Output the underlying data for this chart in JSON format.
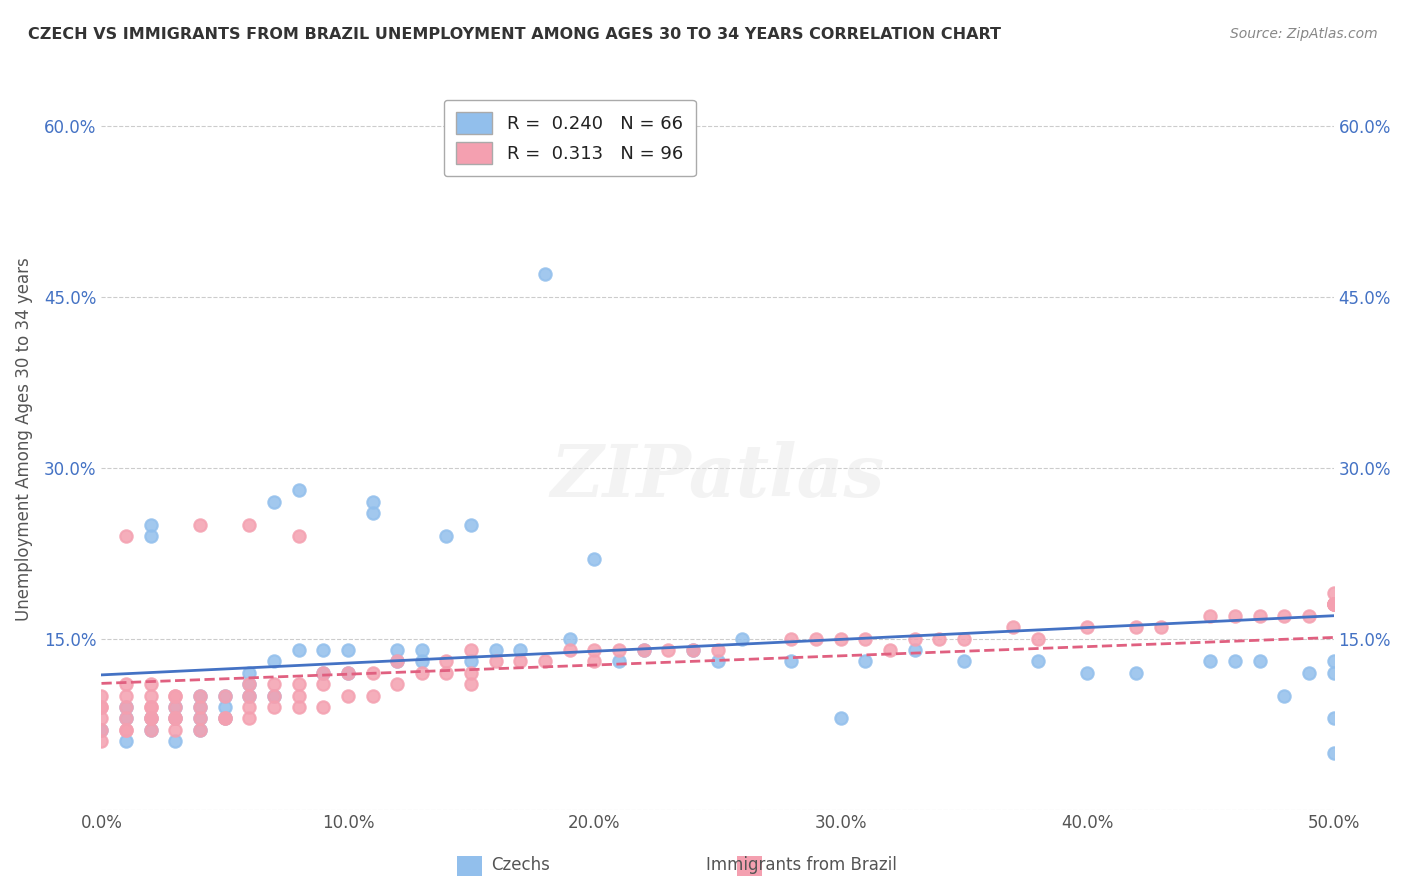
{
  "title": "CZECH VS IMMIGRANTS FROM BRAZIL UNEMPLOYMENT AMONG AGES 30 TO 34 YEARS CORRELATION CHART",
  "source": "Source: ZipAtlas.com",
  "xlabel_bottom": "",
  "ylabel": "Unemployment Among Ages 30 to 34 years",
  "xlim": [
    0.0,
    0.5
  ],
  "ylim": [
    0.0,
    0.65
  ],
  "xticks": [
    0.0,
    0.1,
    0.2,
    0.3,
    0.4,
    0.5
  ],
  "xticklabels": [
    "0.0%",
    "10.0%",
    "20.0%",
    "30.0%",
    "40.0%",
    "50.0%"
  ],
  "yticks": [
    0.0,
    0.15,
    0.3,
    0.45,
    0.6
  ],
  "yticklabels": [
    "",
    "15.0%",
    "30.0%",
    "45.0%",
    "60.0%"
  ],
  "legend_blue_r": "0.240",
  "legend_blue_n": "66",
  "legend_pink_r": "0.313",
  "legend_pink_n": "96",
  "blue_color": "#92BFEC",
  "pink_color": "#F4A0B0",
  "trend_blue": "#4472C4",
  "trend_pink": "#E06080",
  "watermark": "ZIPatlas",
  "czechs_x": [
    0.0,
    0.01,
    0.01,
    0.01,
    0.02,
    0.02,
    0.02,
    0.02,
    0.03,
    0.03,
    0.03,
    0.04,
    0.04,
    0.04,
    0.04,
    0.05,
    0.05,
    0.05,
    0.06,
    0.06,
    0.06,
    0.07,
    0.07,
    0.07,
    0.08,
    0.08,
    0.09,
    0.09,
    0.1,
    0.1,
    0.11,
    0.11,
    0.12,
    0.12,
    0.13,
    0.13,
    0.14,
    0.15,
    0.15,
    0.16,
    0.17,
    0.18,
    0.19,
    0.2,
    0.21,
    0.22,
    0.24,
    0.25,
    0.26,
    0.28,
    0.3,
    0.31,
    0.33,
    0.35,
    0.38,
    0.4,
    0.42,
    0.45,
    0.46,
    0.47,
    0.48,
    0.49,
    0.5,
    0.5,
    0.5,
    0.5
  ],
  "czechs_y": [
    0.07,
    0.08,
    0.09,
    0.06,
    0.24,
    0.25,
    0.07,
    0.08,
    0.08,
    0.09,
    0.06,
    0.1,
    0.09,
    0.08,
    0.07,
    0.1,
    0.08,
    0.09,
    0.12,
    0.11,
    0.1,
    0.13,
    0.1,
    0.27,
    0.28,
    0.14,
    0.12,
    0.14,
    0.12,
    0.14,
    0.26,
    0.27,
    0.14,
    0.13,
    0.13,
    0.14,
    0.24,
    0.13,
    0.25,
    0.14,
    0.14,
    0.47,
    0.15,
    0.22,
    0.13,
    0.14,
    0.14,
    0.13,
    0.15,
    0.13,
    0.08,
    0.13,
    0.14,
    0.13,
    0.13,
    0.12,
    0.12,
    0.13,
    0.13,
    0.13,
    0.1,
    0.12,
    0.05,
    0.08,
    0.12,
    0.13
  ],
  "brazil_x": [
    0.0,
    0.0,
    0.0,
    0.0,
    0.0,
    0.0,
    0.01,
    0.01,
    0.01,
    0.01,
    0.01,
    0.01,
    0.01,
    0.02,
    0.02,
    0.02,
    0.02,
    0.02,
    0.02,
    0.02,
    0.03,
    0.03,
    0.03,
    0.03,
    0.03,
    0.03,
    0.04,
    0.04,
    0.04,
    0.04,
    0.04,
    0.05,
    0.05,
    0.05,
    0.06,
    0.06,
    0.06,
    0.06,
    0.06,
    0.07,
    0.07,
    0.07,
    0.08,
    0.08,
    0.08,
    0.08,
    0.09,
    0.09,
    0.09,
    0.1,
    0.1,
    0.11,
    0.11,
    0.12,
    0.12,
    0.13,
    0.14,
    0.14,
    0.15,
    0.15,
    0.15,
    0.16,
    0.17,
    0.18,
    0.19,
    0.2,
    0.2,
    0.21,
    0.22,
    0.23,
    0.24,
    0.25,
    0.28,
    0.29,
    0.3,
    0.31,
    0.32,
    0.33,
    0.34,
    0.35,
    0.37,
    0.38,
    0.4,
    0.42,
    0.43,
    0.45,
    0.46,
    0.47,
    0.48,
    0.49,
    0.5,
    0.5,
    0.5,
    0.5,
    0.5,
    0.5
  ],
  "brazil_y": [
    0.06,
    0.07,
    0.08,
    0.09,
    0.09,
    0.1,
    0.07,
    0.07,
    0.08,
    0.09,
    0.1,
    0.11,
    0.24,
    0.07,
    0.08,
    0.08,
    0.09,
    0.09,
    0.1,
    0.11,
    0.07,
    0.08,
    0.08,
    0.09,
    0.1,
    0.1,
    0.07,
    0.08,
    0.09,
    0.1,
    0.25,
    0.08,
    0.08,
    0.1,
    0.08,
    0.09,
    0.1,
    0.11,
    0.25,
    0.09,
    0.1,
    0.11,
    0.09,
    0.1,
    0.11,
    0.24,
    0.09,
    0.11,
    0.12,
    0.1,
    0.12,
    0.1,
    0.12,
    0.11,
    0.13,
    0.12,
    0.12,
    0.13,
    0.11,
    0.12,
    0.14,
    0.13,
    0.13,
    0.13,
    0.14,
    0.13,
    0.14,
    0.14,
    0.14,
    0.14,
    0.14,
    0.14,
    0.15,
    0.15,
    0.15,
    0.15,
    0.14,
    0.15,
    0.15,
    0.15,
    0.16,
    0.15,
    0.16,
    0.16,
    0.16,
    0.17,
    0.17,
    0.17,
    0.17,
    0.17,
    0.18,
    0.18,
    0.18,
    0.18,
    0.18,
    0.19
  ]
}
